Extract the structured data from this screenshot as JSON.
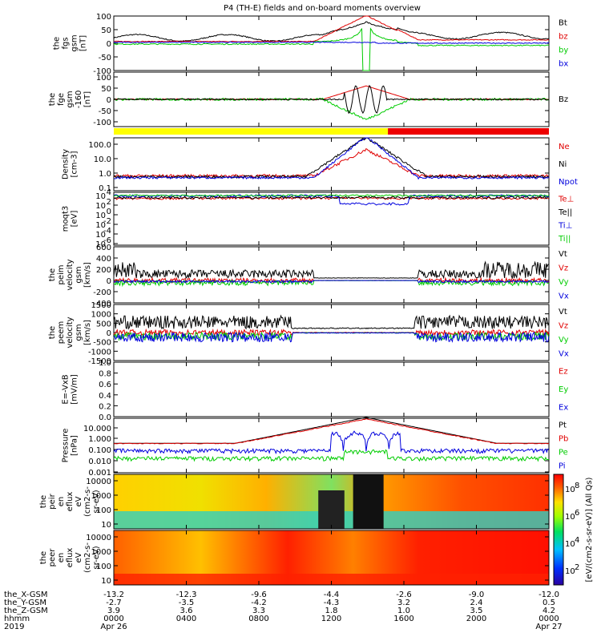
{
  "title": "P4 (TH-E) fields and on-board moments overview",
  "colors": {
    "black": "#000000",
    "red": "#e00000",
    "green": "#00cc00",
    "blue": "#0000dd",
    "yellow": "#ffff00",
    "barred": "#ee0000"
  },
  "chart_data": [
    {
      "type": "line",
      "name": "fgs",
      "ylabel": [
        "the",
        "fgs",
        "gsm",
        "[nT]"
      ],
      "yticks": [
        "100",
        "50",
        "0",
        "-50",
        "-100"
      ],
      "ylim": [
        -100,
        100
      ],
      "legend": [
        {
          "label": "Bt",
          "color": "black"
        },
        {
          "label": "bz",
          "color": "red"
        },
        {
          "label": "by",
          "color": "green"
        },
        {
          "label": "bx",
          "color": "blue"
        }
      ]
    },
    {
      "type": "line",
      "name": "fge",
      "ylabel": [
        "the",
        "fge",
        "gsm",
        "-160",
        "[nT]"
      ],
      "yticks": [
        "100",
        "50",
        "0",
        "-50",
        "-100"
      ],
      "ylim": [
        -120,
        120
      ],
      "legend": [
        {
          "label": "Bz",
          "color": "black"
        }
      ]
    },
    {
      "type": "bar",
      "name": "mode-bar",
      "segments": [
        {
          "from": 0,
          "to": 0.63,
          "color": "yellow"
        },
        {
          "from": 0.63,
          "to": 1,
          "color": "barred"
        }
      ]
    },
    {
      "type": "line",
      "name": "density",
      "ylabel": [
        "Density",
        "[cm-3]"
      ],
      "yticks": [
        "100.0",
        "10.0",
        "1.0",
        "0.1"
      ],
      "log": true,
      "legend": [
        {
          "label": "Ne",
          "color": "red"
        },
        {
          "label": "Ni",
          "color": "black"
        },
        {
          "label": "Npot",
          "color": "blue"
        }
      ]
    },
    {
      "type": "line",
      "name": "moqt3",
      "ylabel": [
        "moqt3",
        "[eV]"
      ],
      "yticks": [
        "10",
        "10",
        "10",
        "10",
        "10",
        "10"
      ],
      "legend": [
        {
          "label": "Te⊥",
          "color": "red"
        },
        {
          "label": "Te||",
          "color": "black"
        },
        {
          "label": "Ti⊥",
          "color": "blue"
        },
        {
          "label": "Ti||",
          "color": "green"
        }
      ]
    },
    {
      "type": "line",
      "name": "peim-velocity",
      "ylabel": [
        "the",
        "peim",
        "velocity",
        "gsm",
        "[km/s]"
      ],
      "yticks": [
        "600",
        "400",
        "200",
        "0",
        "-200",
        "-400"
      ],
      "ylim": [
        -400,
        600
      ],
      "legend": [
        {
          "label": "Vt",
          "color": "black"
        },
        {
          "label": "Vz",
          "color": "red"
        },
        {
          "label": "Vy",
          "color": "green"
        },
        {
          "label": "Vx",
          "color": "blue"
        }
      ]
    },
    {
      "type": "line",
      "name": "peem-velocity",
      "ylabel": [
        "the",
        "peem",
        "velocity",
        "gsm",
        "[km/s]"
      ],
      "yticks": [
        "1500",
        "1000",
        "500",
        "0",
        "-500",
        "-1000",
        "-1500"
      ],
      "ylim": [
        -1500,
        1500
      ],
      "legend": [
        {
          "label": "Vt",
          "color": "black"
        },
        {
          "label": "Vz",
          "color": "red"
        },
        {
          "label": "Vy",
          "color": "green"
        },
        {
          "label": "Vx",
          "color": "blue"
        }
      ]
    },
    {
      "type": "line",
      "name": "efield",
      "ylabel": [
        "E=-VxB",
        "[mV/m]"
      ],
      "yticks": [
        "1.0",
        "0.8",
        "0.6",
        "0.4",
        "0.2",
        "0.0"
      ],
      "ylim": [
        0,
        1
      ],
      "legend": [
        {
          "label": "Ez",
          "color": "red"
        },
        {
          "label": "Ey",
          "color": "green"
        },
        {
          "label": "Ex",
          "color": "blue"
        }
      ]
    },
    {
      "type": "line",
      "name": "pressure",
      "ylabel": [
        "Pressure",
        "[nPa]"
      ],
      "yticks": [
        "10.000",
        "1.000",
        "0.100",
        "0.010",
        "0.001"
      ],
      "log": true,
      "legend": [
        {
          "label": "Pt",
          "color": "black"
        },
        {
          "label": "Pb",
          "color": "red"
        },
        {
          "label": "Pe",
          "color": "green"
        },
        {
          "label": "Pi",
          "color": "blue"
        }
      ]
    },
    {
      "type": "heatmap",
      "name": "peir-spectrogram",
      "ylabel": [
        "the",
        "peir",
        "en",
        "eflux",
        "eV",
        "(cm2-s-",
        "sr-eV)"
      ],
      "yticks": [
        "10000",
        "1000",
        "100",
        "10"
      ]
    },
    {
      "type": "heatmap",
      "name": "peer-spectrogram",
      "ylabel": [
        "the",
        "peer",
        "en",
        "eflux",
        "eV",
        "(cm2-s-",
        "sr-eV)"
      ],
      "yticks": [
        "10000",
        "1000",
        "100",
        "10"
      ]
    }
  ],
  "colorbar": {
    "ticks": [
      "10",
      "10",
      "10",
      "10"
    ],
    "exponents": [
      "8",
      "6",
      "4",
      "2"
    ],
    "label": "[eV/(cm2-s-sr-eV)] (All Qs)"
  },
  "xaxis": {
    "rows": [
      {
        "label": "the_X-GSM",
        "values": [
          "-13.2",
          "-12.3",
          "-9.6",
          "-4.4",
          "-2.6",
          "-9.0",
          "-12.0"
        ]
      },
      {
        "label": "the_Y-GSM",
        "values": [
          "-2.7",
          "-3.5",
          "-4.2",
          "-4.3",
          "3.2",
          "2.4",
          "0.5"
        ]
      },
      {
        "label": "the_Z-GSM",
        "values": [
          "3.9",
          "3.6",
          "3.3",
          "1.8",
          "1.0",
          "3.5",
          "4.2"
        ]
      },
      {
        "label": "hhmm",
        "values": [
          "0000",
          "0400",
          "0800",
          "1200",
          "1600",
          "2000",
          "0000"
        ]
      }
    ],
    "year": "2019",
    "date_start": "Apr 26",
    "date_end": "Apr 27"
  }
}
